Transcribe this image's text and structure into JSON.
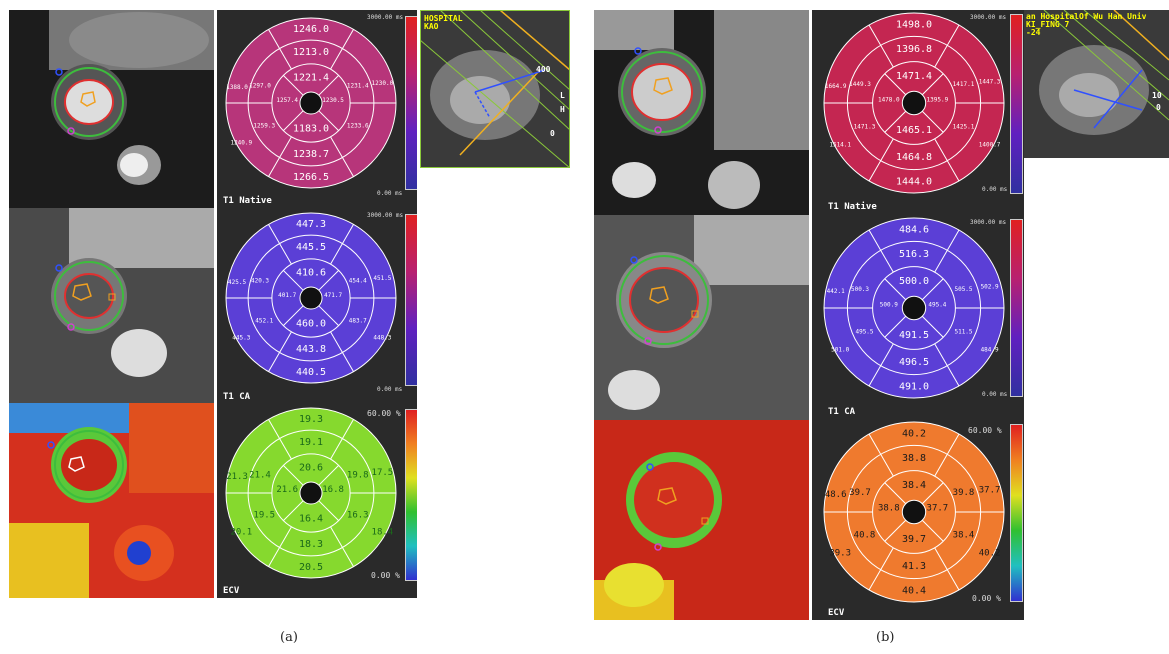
{
  "panel_a": {
    "caption": "(a)",
    "maps": [
      {
        "label": "T1 Native",
        "scale_max": "3000.00 ms",
        "scale_min": "0.00 ms",
        "fill": "#b7357a",
        "text_color": "#ffffff",
        "basal": [
          "1246.0",
          "1265.0",
          "1231.4",
          "1233.6",
          "1238.7",
          "1388.0"
        ],
        "mid": [
          "1213.0",
          "1230.5",
          "1230.0",
          "1183.0",
          "1259.3",
          "1297.0"
        ],
        "apical": [
          "1221.4",
          "1240.9",
          "1257.4",
          "1183.0"
        ],
        "seg_outer": [
          "1246.0",
          "1213.0",
          "1221.4",
          "1183.0",
          "1238.7",
          "1266.5"
        ],
        "labels_small": [
          "1388.0",
          "1297.0",
          "1257.4",
          "1259.3",
          "1240.9",
          "1230.5",
          "1231.4",
          "1230.0",
          "1233.6"
        ]
      },
      {
        "label": "T1 CA",
        "scale_max": "3000.00 ms",
        "scale_min": "0.00 ms",
        "fill": "#5b3fd6",
        "text_color": "#ffffff",
        "seg_outer": [
          "447.3",
          "445.5",
          "410.6",
          "460.0",
          "443.8",
          "440.5"
        ],
        "labels_small": [
          "425.5",
          "420.3",
          "401.7",
          "452.1",
          "445.3",
          "471.7",
          "454.4",
          "451.5",
          "483.7",
          "448.3"
        ]
      },
      {
        "label": "ECV",
        "scale_max": "60.00 %",
        "scale_min": "0.00 %",
        "fill": "#86d92e",
        "text_color": "#1a6a1a",
        "seg_outer": [
          "19.3",
          "19.1",
          "20.6",
          "16.4",
          "18.3",
          "20.5"
        ],
        "labels_small": [
          "21.3",
          "21.4",
          "21.6",
          "19.5",
          "20.1",
          "16.8",
          "19.8",
          "17.5",
          "16.3",
          "18.4"
        ]
      }
    ],
    "scout": {
      "text_line1": "HOSPITAL",
      "text_line2": "KAO",
      "text_right": "400",
      "text_l": "L",
      "text_h": "H",
      "text_0": "0"
    }
  },
  "panel_b": {
    "caption": "(b)",
    "maps": [
      {
        "label": "T1 Native",
        "scale_max": "3000.00 ms",
        "scale_min": "0.00 ms",
        "fill": "#c42651",
        "text_color": "#ffffff",
        "seg_outer": [
          "1498.0",
          "1396.8",
          "1471.4",
          "1465.1",
          "1464.8",
          "1444.0"
        ],
        "labels_small": [
          "1664.9",
          "1449.3",
          "1478.0",
          "1471.3",
          "1514.1",
          "1395.9",
          "1417.1",
          "1447.3",
          "1425.1",
          "1400.7"
        ]
      },
      {
        "label": "T1 CA",
        "scale_max": "3000.00 ms",
        "scale_min": "0.00 ms",
        "fill": "#5b3fd6",
        "text_color": "#ffffff",
        "seg_outer": [
          "484.6",
          "516.3",
          "500.0",
          "491.5",
          "496.5",
          "491.0"
        ],
        "labels_small": [
          "442.1",
          "500.3",
          "500.9",
          "495.5",
          "501.0",
          "495.4",
          "505.5",
          "502.9",
          "511.5",
          "484.9"
        ]
      },
      {
        "label": "ECV",
        "scale_max": "60.00 %",
        "scale_min": "0.00 %",
        "fill": "#ef7a2e",
        "text_color": "#1a1a1a",
        "seg_outer": [
          "40.2",
          "38.8",
          "38.4",
          "39.7",
          "41.3",
          "40.4"
        ],
        "labels_small": [
          "48.6",
          "39.7",
          "38.8",
          "40.8",
          "39.3",
          "37.7",
          "39.8",
          "37.7",
          "38.4",
          "40.2"
        ]
      }
    ],
    "scout": {
      "text_line1": "an HospitalOf Wu Han Univ",
      "text_line2": "KI_FING 7",
      "text_line3": "-24",
      "text_right": "10",
      "text_0": "0"
    }
  }
}
